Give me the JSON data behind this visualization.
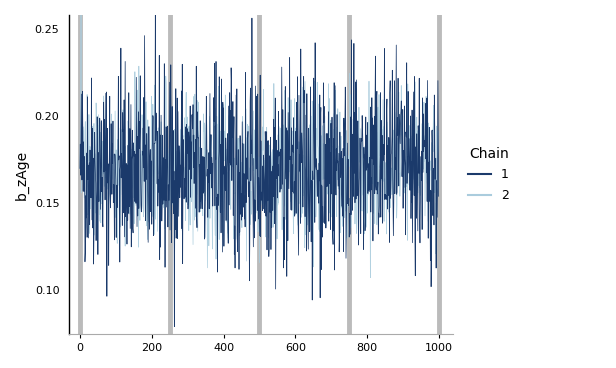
{
  "title": "",
  "ylabel": "b_zAge",
  "xlabel": "",
  "xlim": [
    -30,
    1040
  ],
  "ylim": [
    0.075,
    0.258
  ],
  "yticks": [
    0.1,
    0.15,
    0.2,
    0.25
  ],
  "xticks": [
    0,
    200,
    400,
    600,
    800,
    1000
  ],
  "checkpoint_lines": [
    0,
    250,
    500,
    750,
    1000
  ],
  "checkpoint_color": "#bbbbbb",
  "checkpoint_lw": 3.5,
  "chain1_color": "#1b3a6b",
  "chain2_color": "#aaccdd",
  "chain1_alpha": 1.0,
  "chain2_alpha": 0.9,
  "line_lw": 0.55,
  "n_samples": 1000,
  "mean": 0.17,
  "std": 0.028,
  "seed1": 42,
  "seed2": 137,
  "legend_title": "Chain",
  "legend_title_fontsize": 10,
  "legend_fontsize": 9,
  "axis_label_fontsize": 10,
  "tick_fontsize": 8,
  "background_color": "#ffffff",
  "figsize": [
    6.16,
    3.68
  ],
  "dpi": 100
}
